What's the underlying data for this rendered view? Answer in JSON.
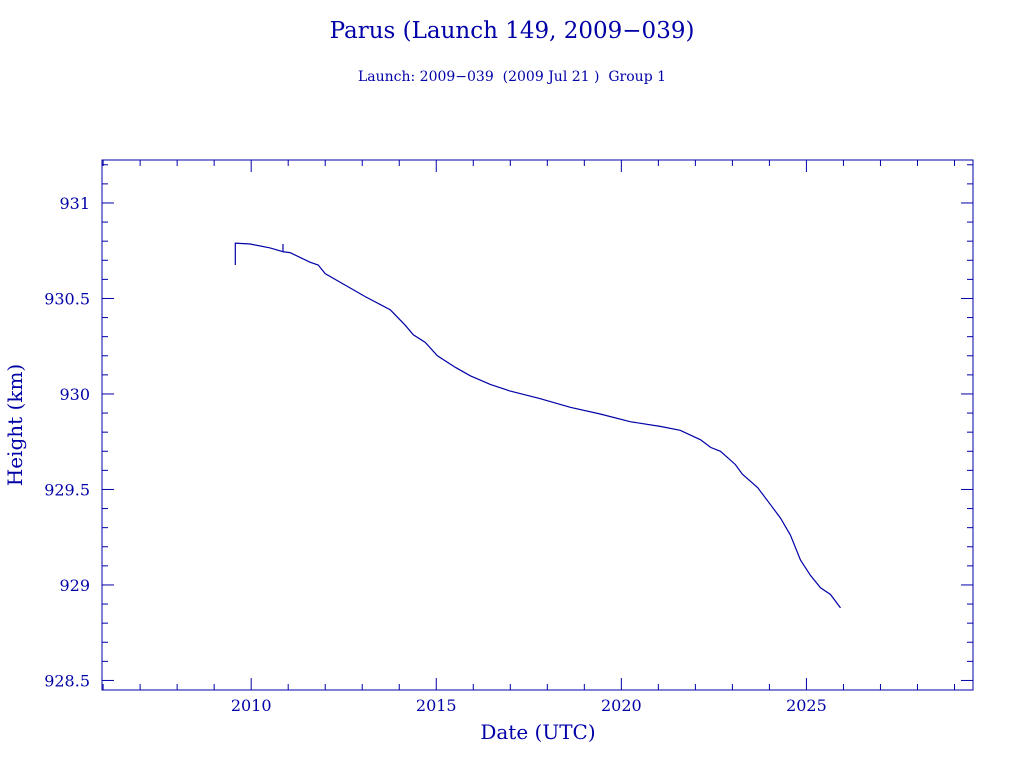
{
  "chart_data": {
    "type": "line",
    "title": "Parus (Launch 149, 2009−039)",
    "subtitle": "Launch: 2009−039  (2009 Jul 21 )  Group 1",
    "xlabel": "Date (UTC)",
    "ylabel": "Height (km)",
    "xlim": [
      2005.97,
      2029.5
    ],
    "ylim": [
      928.45,
      931.225
    ],
    "xticks": [
      2010,
      2015,
      2020,
      2025
    ],
    "xtick_labels": [
      "2010",
      "2015",
      "2020",
      "2025"
    ],
    "yticks": [
      928.5,
      929,
      929.5,
      930,
      930.5,
      931
    ],
    "ytick_labels": [
      "928.5",
      "929",
      "929.5",
      "930",
      "930.5",
      "931"
    ],
    "grid": false,
    "color": "#0000a8",
    "series": [
      {
        "name": "Height",
        "x": [
          2009.57,
          2009.57,
          2009.97,
          2010.51,
          2010.86,
          2010.86,
          2010.86,
          2011.05,
          2011.59,
          2011.81,
          2012.0,
          2012.54,
          2013.08,
          2013.76,
          2014.16,
          2014.38,
          2014.7,
          2015.03,
          2015.51,
          2015.92,
          2016.46,
          2017.0,
          2017.81,
          2018.62,
          2019.43,
          2020.24,
          2021.05,
          2021.59,
          2022.14,
          2022.41,
          2022.68,
          2023.08,
          2023.27,
          2023.68,
          2024.03,
          2024.3,
          2024.57,
          2024.84,
          2025.11,
          2025.38,
          2025.65,
          2025.92
        ],
        "y": [
          930.675,
          930.79,
          930.785,
          930.765,
          930.745,
          930.785,
          930.745,
          930.74,
          930.69,
          930.675,
          930.63,
          930.57,
          930.51,
          930.44,
          930.36,
          930.31,
          930.27,
          930.2,
          930.14,
          930.095,
          930.05,
          930.015,
          929.975,
          929.93,
          929.895,
          929.855,
          929.83,
          929.81,
          929.76,
          929.72,
          929.7,
          929.63,
          929.58,
          929.51,
          929.42,
          929.35,
          929.26,
          929.13,
          929.05,
          928.985,
          928.95,
          928.88
        ]
      }
    ]
  }
}
